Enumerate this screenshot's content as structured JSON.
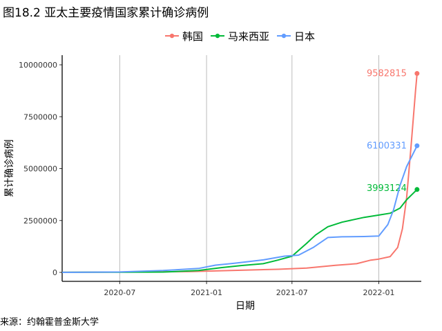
{
  "figure": {
    "title": "图18.2 亚太主要疫情国家累计确诊病例",
    "source": "来源：约翰霍普金斯大学"
  },
  "chart_data": {
    "type": "line",
    "xlabel": "日期",
    "ylabel": "累计确诊病例",
    "x_ticks": [
      "2020-07",
      "2021-01",
      "2021-07",
      "2022-01"
    ],
    "y_ticks": [
      "0",
      "2500000",
      "5000000",
      "7500000",
      "10000000"
    ],
    "ylim": [
      0,
      10000000
    ],
    "xlim": [
      "2020-03-01",
      "2022-04-01"
    ],
    "grid": "vertical",
    "legend_position": "top",
    "series": [
      {
        "name": "韩国",
        "color": "#F8766D",
        "end_label": "9582815",
        "points": [
          [
            "2020-03-01",
            4000
          ],
          [
            "2020-06-01",
            12000
          ],
          [
            "2020-09-01",
            22000
          ],
          [
            "2020-12-01",
            40000
          ],
          [
            "2021-03-01",
            95000
          ],
          [
            "2021-06-01",
            150000
          ],
          [
            "2021-08-01",
            210000
          ],
          [
            "2021-10-01",
            340000
          ],
          [
            "2021-11-15",
            420000
          ],
          [
            "2021-12-15",
            590000
          ],
          [
            "2022-01-01",
            640000
          ],
          [
            "2022-01-25",
            760000
          ],
          [
            "2022-02-10",
            1200000
          ],
          [
            "2022-02-20",
            2100000
          ],
          [
            "2022-03-01",
            3600000
          ],
          [
            "2022-03-10",
            6000000
          ],
          [
            "2022-03-20",
            8800000
          ],
          [
            "2022-03-23",
            9582815
          ]
        ]
      },
      {
        "name": "马来西亚",
        "color": "#00BA38",
        "end_label": "3993124",
        "points": [
          [
            "2020-03-01",
            2000
          ],
          [
            "2020-07-01",
            8700
          ],
          [
            "2020-10-01",
            15000
          ],
          [
            "2020-12-15",
            90000
          ],
          [
            "2021-02-01",
            230000
          ],
          [
            "2021-03-15",
            330000
          ],
          [
            "2021-05-01",
            420000
          ],
          [
            "2021-06-01",
            590000
          ],
          [
            "2021-07-01",
            780000
          ],
          [
            "2021-08-01",
            1400000
          ],
          [
            "2021-08-20",
            1800000
          ],
          [
            "2021-09-15",
            2200000
          ],
          [
            "2021-10-15",
            2420000
          ],
          [
            "2021-12-01",
            2650000
          ],
          [
            "2022-01-01",
            2760000
          ],
          [
            "2022-01-25",
            2850000
          ],
          [
            "2022-02-15",
            3100000
          ],
          [
            "2022-03-01",
            3500000
          ],
          [
            "2022-03-23",
            3993124
          ]
        ]
      },
      {
        "name": "日本",
        "color": "#619CFF",
        "end_label": "6100331",
        "points": [
          [
            "2020-03-01",
            1000
          ],
          [
            "2020-07-01",
            20000
          ],
          [
            "2020-10-01",
            90000
          ],
          [
            "2020-12-15",
            190000
          ],
          [
            "2021-01-20",
            350000
          ],
          [
            "2021-03-01",
            440000
          ],
          [
            "2021-05-01",
            600000
          ],
          [
            "2021-06-15",
            780000
          ],
          [
            "2021-07-15",
            830000
          ],
          [
            "2021-08-15",
            1200000
          ],
          [
            "2021-09-15",
            1680000
          ],
          [
            "2021-10-15",
            1715000
          ],
          [
            "2021-12-01",
            1727000
          ],
          [
            "2022-01-01",
            1750000
          ],
          [
            "2022-01-20",
            2300000
          ],
          [
            "2022-02-01",
            3000000
          ],
          [
            "2022-02-15",
            4200000
          ],
          [
            "2022-03-01",
            5100000
          ],
          [
            "2022-03-23",
            6100331
          ]
        ]
      }
    ]
  }
}
